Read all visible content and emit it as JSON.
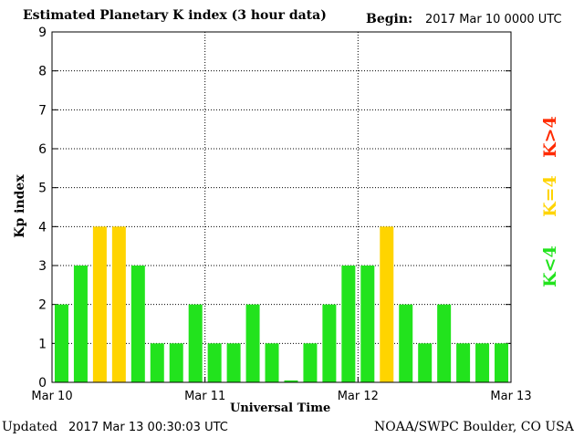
{
  "header": {
    "title": "Estimated Planetary K index (3 hour data)",
    "begin_label": "Begin:",
    "begin_value": "2017 Mar 10 0000 UTC"
  },
  "footer": {
    "updated_label": "Updated",
    "updated_value": "2017 Mar 13 00:30:03 UTC",
    "credit": "NOAA/SWPC Boulder, CO USA"
  },
  "legend": {
    "high": {
      "label": "K>4",
      "color": "#ff2a00"
    },
    "eq": {
      "label": "K=4",
      "color": "#ffd400"
    },
    "low": {
      "label": "K<4",
      "color": "#22e31d"
    }
  },
  "chart_data": {
    "type": "bar",
    "title": "Estimated Planetary K index (3 hour data)",
    "xlabel": "Universal Time",
    "ylabel": "Kp index",
    "ylim": [
      0,
      9
    ],
    "yticks": [
      "0",
      "1",
      "2",
      "3",
      "4",
      "5",
      "6",
      "7",
      "8",
      "9"
    ],
    "xticks": [
      "Mar 10",
      "Mar 11",
      "Mar 12",
      "Mar 13"
    ],
    "grid": true,
    "values": [
      2,
      3,
      4,
      4,
      3,
      1,
      1,
      2,
      1,
      1,
      2,
      1,
      0.05,
      1,
      2,
      3,
      3,
      4,
      2,
      1,
      2,
      1,
      1,
      1
    ],
    "colors": {
      "below4": "#22e31d",
      "equal4": "#ffd400",
      "above4": "#ff2a00"
    }
  }
}
